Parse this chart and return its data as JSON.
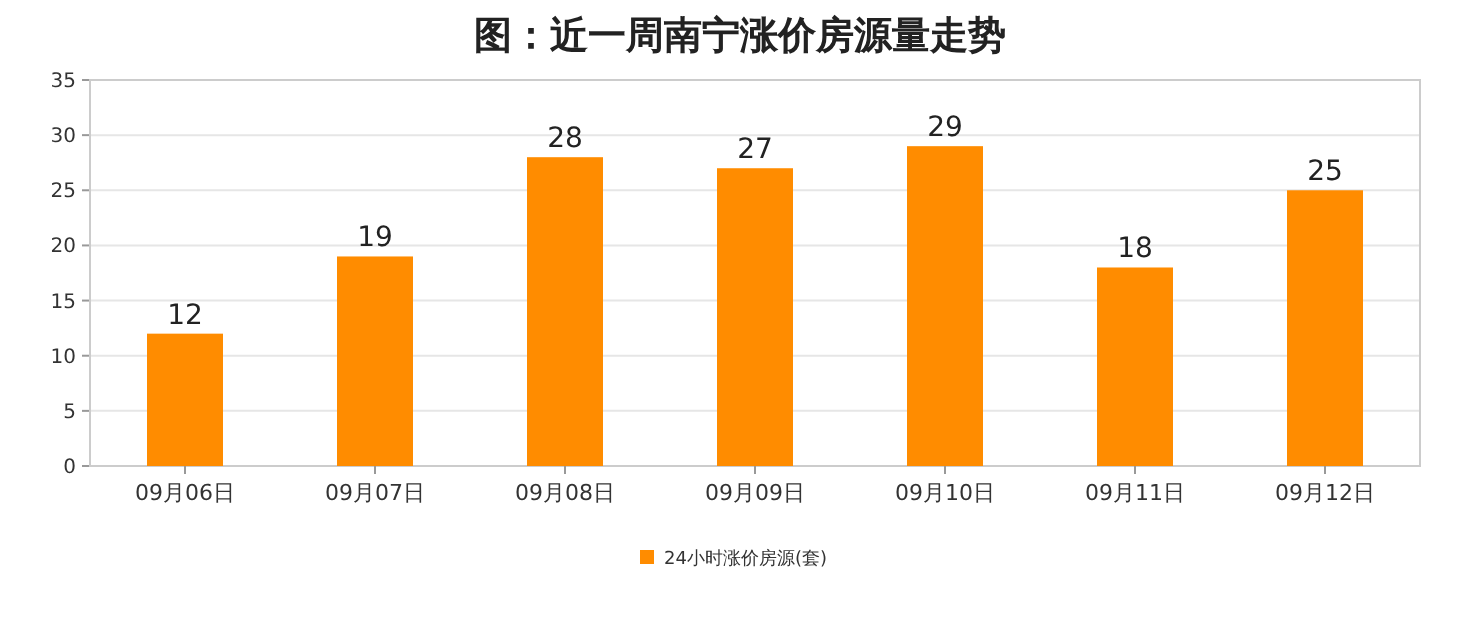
{
  "chart_data": {
    "type": "bar",
    "title": "图：近一周南宁涨价房源量走势",
    "categories": [
      "09月06日",
      "09月07日",
      "09月08日",
      "09月09日",
      "09月10日",
      "09月11日",
      "09月12日"
    ],
    "series": [
      {
        "name": "24小时涨价房源(套)",
        "color": "#ff8c00",
        "values": [
          12,
          19,
          28,
          27,
          29,
          18,
          25
        ]
      }
    ],
    "ylim": [
      0,
      35
    ],
    "yticks": [
      0,
      5,
      10,
      15,
      20,
      25,
      30,
      35
    ],
    "grid": "y",
    "legend": "bottom",
    "data_labels": true
  }
}
